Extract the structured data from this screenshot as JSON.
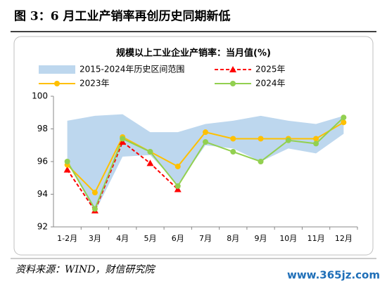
{
  "header": {
    "title": "图 3：6 月工业产销率再创历史同期新低"
  },
  "footer": {
    "source": "资料来源：WIND，财信研究院",
    "watermark": "www.365jz.com"
  },
  "chart_data": {
    "type": "line",
    "title": "规模以上工业企业产销率：当月值(%)",
    "categories": [
      "1-2月",
      "3月",
      "4月",
      "5月",
      "6月",
      "7月",
      "8月",
      "9月",
      "10月",
      "11月",
      "12月"
    ],
    "ylim": [
      92,
      100
    ],
    "yticks": [
      92,
      94,
      96,
      98,
      100
    ],
    "series": [
      {
        "name": "2015-2024年历史区间范围",
        "type": "band",
        "color": "#bdd7ee",
        "high": [
          98.5,
          98.8,
          98.9,
          97.8,
          97.8,
          98.3,
          98.5,
          98.8,
          98.5,
          98.3,
          98.8
        ],
        "low": [
          96.0,
          92.9,
          96.3,
          96.4,
          94.6,
          97.0,
          96.8,
          96.0,
          96.8,
          96.5,
          97.7
        ]
      },
      {
        "name": "2025年",
        "color": "#ff0000",
        "marker": "triangle",
        "dashed": true,
        "values": [
          95.5,
          93.0,
          97.2,
          95.9,
          94.3,
          null,
          null,
          null,
          null,
          null,
          null
        ]
      },
      {
        "name": "2023年",
        "color": "#ffc000",
        "marker": "circle",
        "dashed": false,
        "values": [
          95.8,
          94.1,
          97.5,
          96.6,
          95.7,
          97.8,
          97.4,
          97.4,
          97.4,
          97.4,
          98.4
        ]
      },
      {
        "name": "2024年",
        "color": "#92d050",
        "marker": "circle",
        "dashed": false,
        "values": [
          96.0,
          93.1,
          97.4,
          96.6,
          94.5,
          97.2,
          96.6,
          96.0,
          97.3,
          97.1,
          98.7
        ]
      }
    ]
  }
}
